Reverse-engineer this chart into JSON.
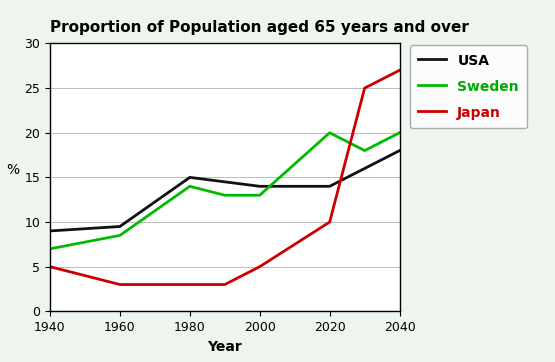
{
  "title": "Proportion of Population aged 65 years and over",
  "xlabel": "Year",
  "ylabel": "%",
  "xlim": [
    1940,
    2040
  ],
  "ylim": [
    0,
    30
  ],
  "xticks": [
    1940,
    1960,
    1980,
    2000,
    2020,
    2040
  ],
  "yticks": [
    0,
    5,
    10,
    15,
    20,
    25,
    30
  ],
  "background_color": "#eef5ee",
  "plot_bg": "#ffffff",
  "series": {
    "USA": {
      "x": [
        1940,
        1960,
        1980,
        1990,
        2000,
        2020,
        2030,
        2040
      ],
      "y": [
        9,
        9.5,
        15,
        14.5,
        14,
        14,
        16,
        18
      ],
      "color": "#111111",
      "linewidth": 2.0,
      "label": "USA",
      "label_color": "#000000"
    },
    "Sweden": {
      "x": [
        1940,
        1960,
        1980,
        1990,
        2000,
        2020,
        2030,
        2040
      ],
      "y": [
        7,
        8.5,
        14,
        13,
        13,
        20,
        18,
        20
      ],
      "color": "#00bb00",
      "linewidth": 2.0,
      "label": "Sweden",
      "label_color": "#00aa00"
    },
    "Japan": {
      "x": [
        1940,
        1960,
        1980,
        1990,
        2000,
        2020,
        2030,
        2040
      ],
      "y": [
        5,
        3,
        3,
        3,
        5,
        10,
        25,
        27
      ],
      "color": "#cc0000",
      "linewidth": 2.0,
      "label": "Japan",
      "label_color": "#cc0000"
    }
  },
  "legend_box_color": "#ffffff",
  "legend_edge_color": "#999999",
  "grid_color": "#bbbbbb",
  "title_fontsize": 11,
  "axis_label_fontsize": 10,
  "tick_fontsize": 9,
  "legend_fontsize": 10
}
